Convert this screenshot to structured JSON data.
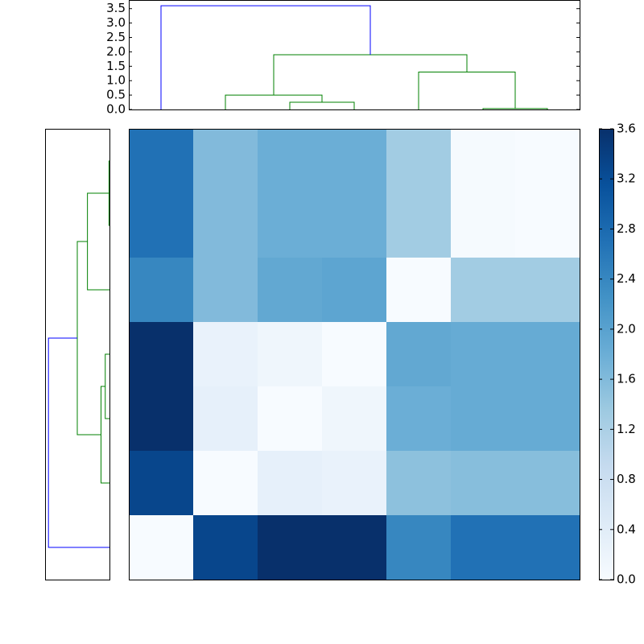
{
  "chart_data": {
    "type": "clustermap",
    "colormap": "Blues",
    "matrix": [
      [
        2.7,
        1.6,
        1.8,
        1.8,
        1.3,
        0.03,
        0
      ],
      [
        2.7,
        1.6,
        1.8,
        1.8,
        1.3,
        0.03,
        0
      ],
      [
        2.4,
        1.6,
        1.9,
        1.95,
        0,
        1.3,
        1.3
      ],
      [
        3.6,
        0.25,
        0.15,
        0,
        1.9,
        1.85,
        1.85
      ],
      [
        3.6,
        0.3,
        0,
        0.15,
        1.8,
        1.85,
        1.85
      ],
      [
        3.3,
        0,
        0.3,
        0.25,
        1.5,
        1.55,
        1.55
      ],
      [
        0,
        3.3,
        3.6,
        3.6,
        2.4,
        2.7,
        2.7
      ]
    ],
    "colorbar": {
      "lim": [
        0,
        3.6
      ],
      "ticks": [
        {
          "value": 0,
          "label": "0.0"
        },
        0.4,
        0.8,
        1.2,
        1.6,
        {
          "value": 2,
          "label": "2.0"
        },
        2.4,
        2.8,
        3.2,
        3.6
      ]
    },
    "dendrogram": {
      "xlim": [
        0,
        70
      ],
      "ylim": [
        0,
        3.8
      ],
      "yticks": [
        {
          "value": 0,
          "label": "0.0"
        },
        0.5,
        {
          "value": 1,
          "label": "1.0"
        },
        1.5,
        {
          "value": 2,
          "label": "2.0"
        },
        2.5,
        {
          "value": 3,
          "label": "3.0"
        },
        3.5
      ],
      "links": [
        {
          "color": "#008000",
          "x": [
            25,
            25,
            35,
            35
          ],
          "y": [
            0,
            0.25,
            0.25,
            0
          ]
        },
        {
          "color": "#008000",
          "x": [
            15,
            15,
            30,
            30
          ],
          "y": [
            0,
            0.5,
            0.5,
            0.25
          ]
        },
        {
          "color": "#008000",
          "x": [
            55,
            55,
            65,
            65
          ],
          "y": [
            0,
            0.03,
            0.03,
            0
          ]
        },
        {
          "color": "#008000",
          "x": [
            45,
            45,
            60,
            60
          ],
          "y": [
            0,
            1.3,
            1.3,
            0.03
          ]
        },
        {
          "color": "#008000",
          "x": [
            22.5,
            22.5,
            52.5,
            52.5
          ],
          "y": [
            0.5,
            1.9,
            1.9,
            1.3
          ]
        },
        {
          "color": "#0000ff",
          "x": [
            5,
            5,
            37.5,
            37.5
          ],
          "y": [
            0,
            3.6,
            3.6,
            1.9
          ]
        }
      ]
    }
  }
}
